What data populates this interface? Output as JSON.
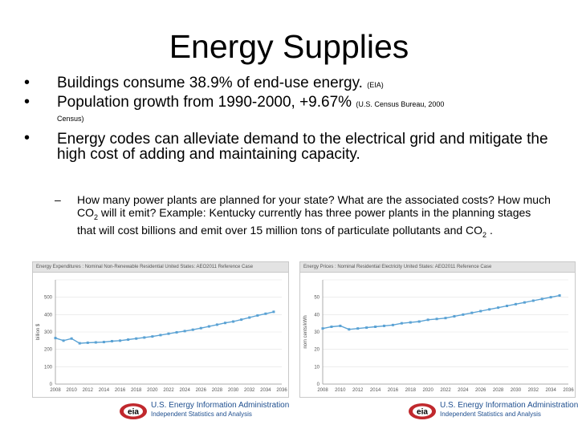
{
  "title": "Energy Supplies",
  "bullets": [
    {
      "text": "Buildings consume 38.9% of end-use energy.",
      "cite": "(EIA)"
    },
    {
      "text": "Population growth from 1990-2000, +9.67%",
      "cite": "(U.S. Census Bureau, 2000",
      "cite_cont": "Census)"
    },
    {
      "text": "Energy codes can alleviate demand to the electrical grid and mitigate the high cost of adding and maintaining capacity."
    }
  ],
  "sub_bullet": {
    "dash": "–",
    "part1": "How many power plants are planned for your state? What are the associated costs? How much CO",
    "sub1": "2",
    "part2": " will it emit? Example: Kentucky currently has three power plants in the planning stages that will cost billions and emit over 15 million tons of particulate pollutants and CO",
    "sub2": "2",
    "part3": " ."
  },
  "footer": {
    "logo_text": "eia",
    "name": "U.S. Energy Information Administration",
    "tagline": "Independent Statistics and Analysis"
  },
  "chart_data": [
    {
      "type": "line",
      "header": "Energy Expenditures : Nominal Non-Renewable Residential United States: AEO2011 Reference Case",
      "ylabel": "billion $",
      "ylim": [
        0,
        600
      ],
      "yticks": [
        "0",
        "100",
        "200",
        "300",
        "400",
        "500"
      ],
      "xticks": [
        "2008",
        "2010",
        "2012",
        "2014",
        "2016",
        "2018",
        "2020",
        "2022",
        "2024",
        "2026",
        "2028",
        "2030",
        "2032",
        "2034",
        "2036"
      ],
      "x": [
        2008,
        2009,
        2010,
        2011,
        2012,
        2013,
        2014,
        2015,
        2016,
        2017,
        2018,
        2019,
        2020,
        2021,
        2022,
        2023,
        2024,
        2025,
        2026,
        2027,
        2028,
        2029,
        2030,
        2031,
        2032,
        2033,
        2034,
        2035
      ],
      "values": [
        265,
        250,
        262,
        235,
        238,
        240,
        242,
        247,
        250,
        256,
        262,
        268,
        274,
        282,
        290,
        298,
        305,
        313,
        322,
        332,
        342,
        352,
        360,
        371,
        383,
        395,
        405,
        416
      ],
      "color": "#5aa2d4"
    },
    {
      "type": "line",
      "header": "Energy Prices : Nominal Residential Electricity United States: AEO2011 Reference Case",
      "ylabel": "nom cents/kWh",
      "ylim": [
        0,
        60
      ],
      "yticks": [
        "0",
        "10",
        "20",
        "30",
        "40",
        "50"
      ],
      "xticks": [
        "2008",
        "2010",
        "2012",
        "2014",
        "2016",
        "2018",
        "2020",
        "2022",
        "2024",
        "2026",
        "2028",
        "2030",
        "2032",
        "2034",
        "2036"
      ],
      "x": [
        2008,
        2009,
        2010,
        2011,
        2012,
        2013,
        2014,
        2015,
        2016,
        2017,
        2018,
        2019,
        2020,
        2021,
        2022,
        2023,
        2024,
        2025,
        2026,
        2027,
        2028,
        2029,
        2030,
        2031,
        2032,
        2033,
        2034,
        2035
      ],
      "values": [
        32,
        33,
        33.5,
        31.5,
        32,
        32.5,
        33,
        33.5,
        34,
        35,
        35.5,
        36,
        37,
        37.5,
        38,
        39,
        40,
        41,
        42,
        43,
        44,
        45,
        46,
        47,
        48,
        49,
        50,
        51
      ],
      "color": "#5aa2d4"
    }
  ]
}
